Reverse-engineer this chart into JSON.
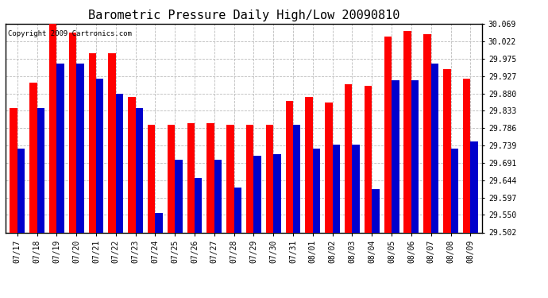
{
  "title": "Barometric Pressure Daily High/Low 20090810",
  "copyright": "Copyright 2009 Cartronics.com",
  "categories": [
    "07/17",
    "07/18",
    "07/19",
    "07/20",
    "07/21",
    "07/22",
    "07/23",
    "07/24",
    "07/25",
    "07/26",
    "07/27",
    "07/28",
    "07/29",
    "07/30",
    "07/31",
    "08/01",
    "08/02",
    "08/03",
    "08/04",
    "08/05",
    "08/06",
    "08/07",
    "08/08",
    "08/09"
  ],
  "highs": [
    29.84,
    29.91,
    30.069,
    30.045,
    29.99,
    29.99,
    29.87,
    29.795,
    29.795,
    29.8,
    29.798,
    29.795,
    29.795,
    29.795,
    29.86,
    29.87,
    29.855,
    29.905,
    29.9,
    30.035,
    30.05,
    30.04,
    29.945,
    29.92
  ],
  "lows": [
    29.73,
    29.84,
    29.96,
    29.96,
    29.92,
    29.88,
    29.84,
    29.555,
    29.7,
    29.65,
    29.7,
    29.625,
    29.71,
    29.715,
    29.795,
    29.73,
    29.74,
    29.74,
    29.62,
    29.915,
    29.915,
    29.96,
    29.73,
    29.75
  ],
  "high_color": "#ff0000",
  "low_color": "#0000cc",
  "bg_color": "#ffffff",
  "grid_color": "#bbbbbb",
  "ylim_min": 29.502,
  "ylim_max": 30.069,
  "yticks": [
    29.502,
    29.55,
    29.597,
    29.644,
    29.691,
    29.739,
    29.786,
    29.833,
    29.88,
    29.927,
    29.975,
    30.022,
    30.069
  ],
  "title_fontsize": 11,
  "tick_fontsize": 7,
  "copyright_fontsize": 6.5,
  "bar_width": 0.38
}
